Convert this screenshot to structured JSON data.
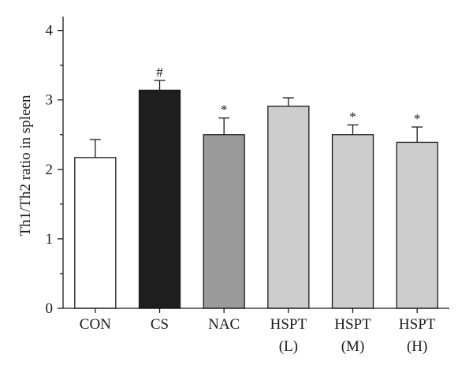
{
  "chart_data": {
    "type": "bar",
    "title": "",
    "xlabel": "",
    "ylabel": "Th1/Th2 ratio in spleen",
    "ylim": [
      0,
      4.2
    ],
    "yticks": [
      0,
      1,
      2,
      3,
      4
    ],
    "categories": [
      [
        "CON"
      ],
      [
        "CS"
      ],
      [
        "NAC"
      ],
      [
        "HSPT",
        "(L)"
      ],
      [
        "HSPT",
        "(M)"
      ],
      [
        "HSPT",
        "(H)"
      ]
    ],
    "values": [
      2.17,
      3.14,
      2.5,
      2.91,
      2.5,
      2.39
    ],
    "errors": [
      0.26,
      0.14,
      0.24,
      0.12,
      0.14,
      0.22
    ],
    "annotations": [
      "",
      "#",
      "*",
      "",
      "*",
      "*"
    ],
    "colors": [
      "#ffffff",
      "#1e1e1e",
      "#9b9b9b",
      "#cdcdcd",
      "#cdcdcd",
      "#cdcdcd"
    ],
    "grid": false
  }
}
